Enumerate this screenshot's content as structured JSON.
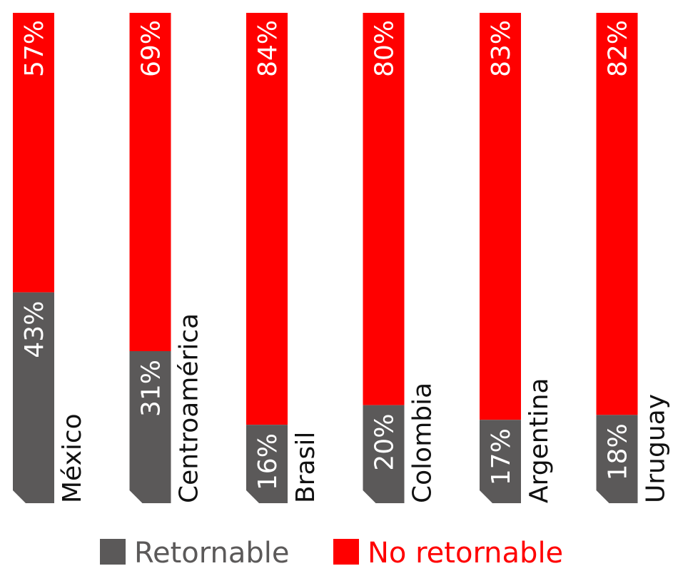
{
  "chart_data": {
    "type": "bar",
    "stacked": true,
    "orientation": "vertical",
    "categories": [
      "México",
      "Centroamérica",
      "Brasil",
      "Colombia",
      "Argentina",
      "Uruguay"
    ],
    "series": [
      {
        "name": "Retornable",
        "color": "#5b5959",
        "values": [
          43,
          31,
          16,
          20,
          17,
          18
        ],
        "labels": [
          "43%",
          "31%",
          "16%",
          "20%",
          "17%",
          "18%"
        ]
      },
      {
        "name": "No retornable",
        "color": "#ff0000",
        "values": [
          57,
          69,
          84,
          80,
          83,
          82
        ],
        "labels": [
          "57%",
          "69%",
          "84%",
          "80%",
          "83%",
          "82%"
        ]
      }
    ],
    "ylim": [
      0,
      100
    ],
    "grid": false,
    "legend_position": "bottom"
  },
  "legend": {
    "items": [
      {
        "label": "Retornable",
        "color": "#5b5959"
      },
      {
        "label": "No retornable",
        "color": "#ff0000"
      }
    ]
  }
}
